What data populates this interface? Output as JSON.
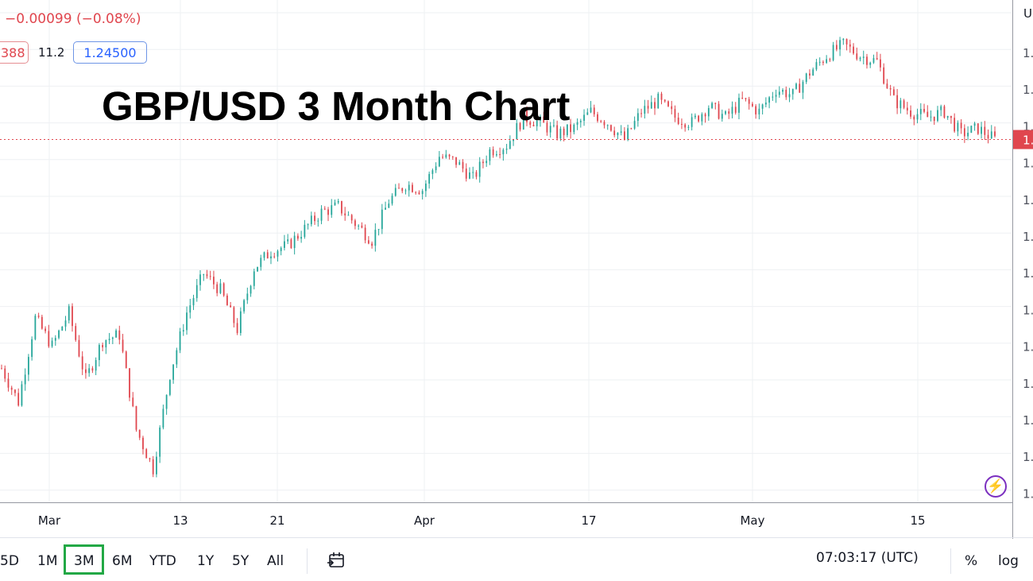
{
  "header": {
    "change": "−0.00099 (−0.08%)",
    "bid_fragment": "388",
    "spread": "11.2",
    "ask": "1.24500"
  },
  "title": "GBP/USD 3 Month Chart",
  "price_axis": {
    "corner_label": "U",
    "tick_labels": [
      "1.",
      "1.",
      "1.",
      "1.",
      "1.",
      "1.",
      "1.",
      "1.",
      "1.",
      "1.",
      "1.",
      "1.",
      "1.",
      "1."
    ],
    "current_label": "1."
  },
  "toolbar": {
    "ranges": [
      "5D",
      "1M",
      "3M",
      "6M",
      "YTD",
      "1Y",
      "5Y",
      "All"
    ],
    "active_range": "3M",
    "time": "07:03:17 (UTC)",
    "percent": "%",
    "log": "log",
    "date_range_icon": "date-range-icon",
    "lightning_icon": "lightning-icon"
  },
  "colors": {
    "up": "#26a69a",
    "down": "#e0464e",
    "grid": "#eef0f3",
    "current_line": "#e0464e",
    "active_range_border": "#22a845"
  },
  "chart_data": {
    "type": "candlestick",
    "title": "GBP/USD 3 Month Chart",
    "x_tick_labels": [
      "Mar",
      "13",
      "21",
      "Apr",
      "17",
      "May",
      "15"
    ],
    "close_series": [
      1.204,
      1.198,
      1.213,
      1.208,
      1.214,
      1.202,
      1.209,
      1.21,
      1.193,
      1.186,
      1.203,
      1.214,
      1.221,
      1.218,
      1.211,
      1.222,
      1.225,
      1.226,
      1.229,
      1.232,
      1.233,
      1.23,
      1.227,
      1.234,
      1.237,
      1.236,
      1.242,
      1.241,
      1.238,
      1.243,
      1.244,
      1.249,
      1.248,
      1.246,
      1.247,
      1.25,
      1.248,
      1.245,
      1.25,
      1.252,
      1.249,
      1.248,
      1.251,
      1.249,
      1.252,
      1.25,
      1.254,
      1.253,
      1.257,
      1.26,
      1.262,
      1.26,
      1.259,
      1.252,
      1.25,
      1.249,
      1.25,
      1.246,
      1.247,
      1.245
    ],
    "y_range": [
      1.18,
      1.27
    ],
    "current_value": 1.245,
    "grid": true,
    "legend": "none"
  }
}
